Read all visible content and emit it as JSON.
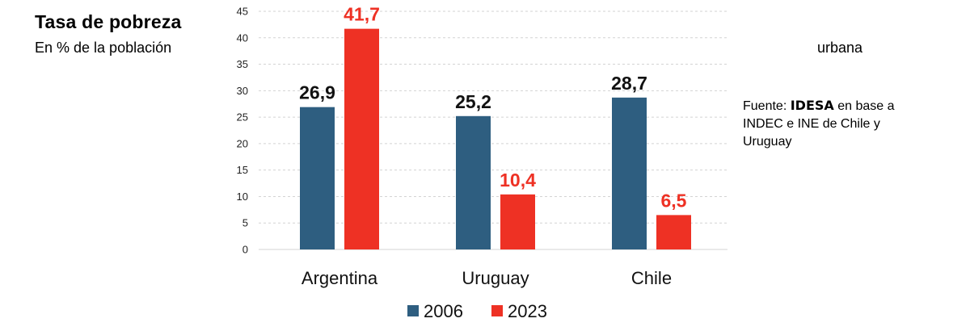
{
  "header": {
    "title": "Tasa de pobreza",
    "subtitle": "En % de la población",
    "subtitle_tail": "urbana"
  },
  "source": {
    "prefix": "Fuente: ",
    "brand": "IDESA",
    "suffix": " en base a INDEC e INE de Chile y Uruguay"
  },
  "colors": {
    "s2006": "#2e5e80",
    "s2023": "#ee3124",
    "grid": "#d3d3d3"
  },
  "chart_data": {
    "type": "bar",
    "title": "Tasa de pobreza",
    "ylabel": "En % de la población urbana",
    "xlabel": "",
    "ylim": [
      0,
      45
    ],
    "yticks": [
      0,
      5,
      10,
      15,
      20,
      25,
      30,
      35,
      40,
      45
    ],
    "grid": true,
    "categories": [
      "Argentina",
      "Uruguay",
      "Chile"
    ],
    "series": [
      {
        "name": "2006",
        "values": [
          26.9,
          25.2,
          28.7
        ],
        "labels": [
          "26,9",
          "25,2",
          "28,7"
        ]
      },
      {
        "name": "2023",
        "values": [
          41.7,
          10.4,
          6.5
        ],
        "labels": [
          "41,7",
          "10,4",
          "6,5"
        ]
      }
    ],
    "legend_position": "bottom-center"
  }
}
